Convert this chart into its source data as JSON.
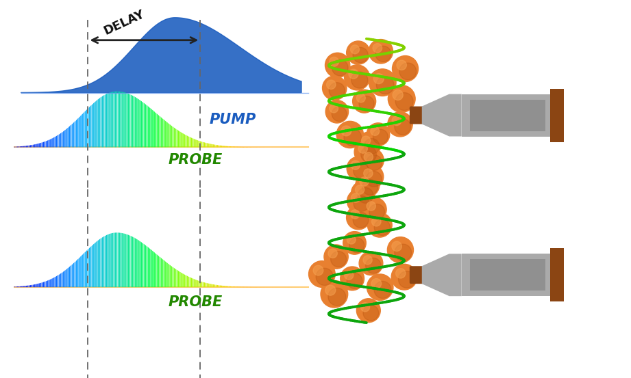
{
  "background_color": "#ffffff",
  "pump_color": "#1a5cbf",
  "pump_label": "PUMP",
  "probe_label": "PROBE",
  "delay_label": "DELAY",
  "dashed_line_color": "#666666",
  "arrow_color": "#222222",
  "fiber_gray": "#aaaaaa",
  "fiber_dark": "#909090",
  "fiber_tip_color": "#8B4513",
  "sphere_orange": "#D4691E",
  "sphere_highlight": "#F4A050",
  "orange_line_color": "#FFA500"
}
